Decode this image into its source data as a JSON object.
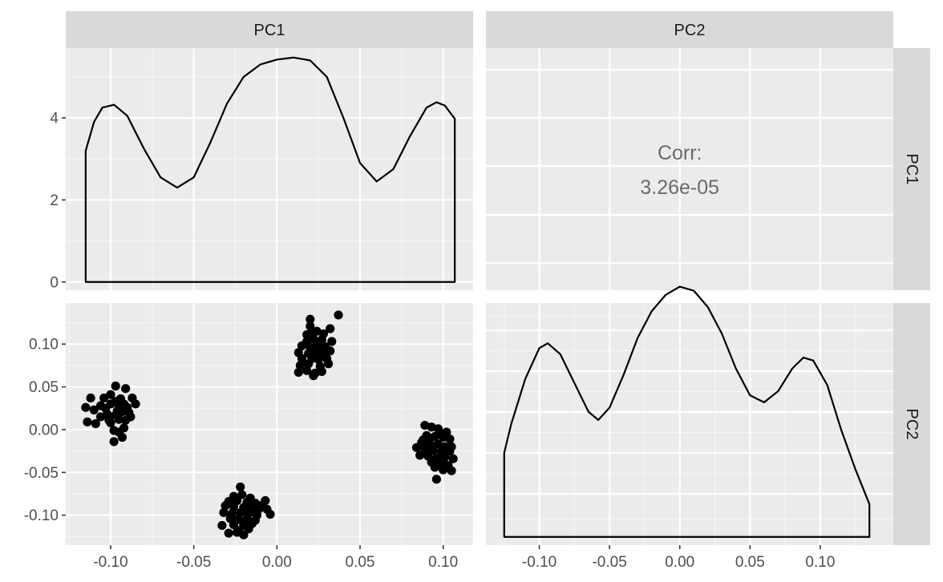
{
  "chart_data": {
    "type": "scatter",
    "variables": [
      "PC1",
      "PC2"
    ],
    "grid": true,
    "panels": [
      {
        "row": "PC1",
        "col": "PC1",
        "type": "density",
        "xlim": [
          -0.127,
          0.118
        ],
        "ylim": [
          -0.2,
          5.7
        ],
        "y_ticks": [
          0,
          2,
          4
        ],
        "y_tick_labels": [
          "0",
          "2",
          "4"
        ],
        "curve": [
          [
            -0.115,
            3.2
          ],
          [
            -0.11,
            3.9
          ],
          [
            -0.105,
            4.25
          ],
          [
            -0.098,
            4.32
          ],
          [
            -0.09,
            4.05
          ],
          [
            -0.08,
            3.25
          ],
          [
            -0.07,
            2.55
          ],
          [
            -0.06,
            2.3
          ],
          [
            -0.05,
            2.55
          ],
          [
            -0.04,
            3.4
          ],
          [
            -0.03,
            4.35
          ],
          [
            -0.02,
            5.0
          ],
          [
            -0.01,
            5.3
          ],
          [
            0.0,
            5.42
          ],
          [
            0.01,
            5.47
          ],
          [
            0.02,
            5.4
          ],
          [
            0.03,
            5.0
          ],
          [
            0.04,
            4.0
          ],
          [
            0.05,
            2.9
          ],
          [
            0.06,
            2.45
          ],
          [
            0.07,
            2.75
          ],
          [
            0.08,
            3.55
          ],
          [
            0.09,
            4.25
          ],
          [
            0.096,
            4.38
          ],
          [
            0.101,
            4.3
          ],
          [
            0.107,
            3.98
          ]
        ]
      },
      {
        "row": "PC1",
        "col": "PC2",
        "type": "text",
        "label": "Corr:",
        "value": "3.26e-05"
      },
      {
        "row": "PC2",
        "col": "PC1",
        "type": "scatter",
        "xlim": [
          -0.127,
          0.118
        ],
        "ylim": [
          -0.135,
          0.148
        ],
        "y_ticks": [
          0.1,
          0.05,
          0.0,
          -0.05,
          -0.1
        ],
        "y_tick_labels": [
          "0.10",
          "0.05",
          "0.00",
          "-0.05",
          "-0.10"
        ],
        "x_ticks": [
          -0.1,
          -0.05,
          0.0,
          0.05,
          0.1
        ],
        "x_tick_labels": [
          "-0.10",
          "-0.05",
          "0.00",
          "0.05",
          "0.10"
        ],
        "points": [
          [
            -0.097,
            0.051
          ],
          [
            -0.091,
            0.048
          ],
          [
            -0.094,
            0.036
          ],
          [
            -0.087,
            0.037
          ],
          [
            -0.1,
            0.041
          ],
          [
            -0.104,
            0.037
          ],
          [
            -0.112,
            0.037
          ],
          [
            -0.115,
            0.026
          ],
          [
            -0.11,
            0.023
          ],
          [
            -0.106,
            0.028
          ],
          [
            -0.1,
            0.03
          ],
          [
            -0.095,
            0.028
          ],
          [
            -0.09,
            0.026
          ],
          [
            -0.085,
            0.03
          ],
          [
            -0.089,
            0.02
          ],
          [
            -0.093,
            0.021
          ],
          [
            -0.097,
            0.017
          ],
          [
            -0.102,
            0.018
          ],
          [
            -0.106,
            0.015
          ],
          [
            -0.109,
            0.007
          ],
          [
            -0.114,
            0.009
          ],
          [
            -0.1,
            0.008
          ],
          [
            -0.095,
            0.012
          ],
          [
            -0.091,
            0.011
          ],
          [
            -0.088,
            0.015
          ],
          [
            -0.098,
            -0.001
          ],
          [
            -0.095,
            -0.003
          ],
          [
            -0.092,
            0.002
          ],
          [
            -0.098,
            -0.014
          ],
          [
            -0.093,
            -0.009
          ],
          [
            -0.103,
            0.025
          ],
          [
            -0.097,
            0.033
          ],
          [
            -0.092,
            0.03
          ],
          [
            -0.101,
            0.011
          ],
          [
            -0.096,
            0.022
          ],
          [
            0.032,
            0.118
          ],
          [
            0.02,
            0.129
          ],
          [
            0.02,
            0.121
          ],
          [
            0.021,
            0.115
          ],
          [
            0.018,
            0.111
          ],
          [
            0.024,
            0.115
          ],
          [
            0.028,
            0.112
          ],
          [
            0.027,
            0.105
          ],
          [
            0.022,
            0.106
          ],
          [
            0.018,
            0.103
          ],
          [
            0.015,
            0.098
          ],
          [
            0.02,
            0.096
          ],
          [
            0.025,
            0.097
          ],
          [
            0.029,
            0.097
          ],
          [
            0.033,
            0.103
          ],
          [
            0.013,
            0.09
          ],
          [
            0.019,
            0.089
          ],
          [
            0.024,
            0.091
          ],
          [
            0.028,
            0.089
          ],
          [
            0.032,
            0.092
          ],
          [
            0.015,
            0.083
          ],
          [
            0.021,
            0.083
          ],
          [
            0.025,
            0.082
          ],
          [
            0.03,
            0.083
          ],
          [
            0.014,
            0.075
          ],
          [
            0.019,
            0.077
          ],
          [
            0.026,
            0.074
          ],
          [
            0.031,
            0.077
          ],
          [
            0.013,
            0.067
          ],
          [
            0.018,
            0.069
          ],
          [
            0.023,
            0.066
          ],
          [
            0.022,
            0.063
          ],
          [
            0.027,
            0.068
          ],
          [
            0.037,
            0.134
          ],
          [
            0.024,
            0.102
          ],
          [
            -0.022,
            -0.067
          ],
          [
            -0.026,
            -0.078
          ],
          [
            -0.021,
            -0.076
          ],
          [
            -0.016,
            -0.08
          ],
          [
            -0.029,
            -0.084
          ],
          [
            -0.024,
            -0.083
          ],
          [
            -0.018,
            -0.085
          ],
          [
            -0.013,
            -0.086
          ],
          [
            -0.01,
            -0.089
          ],
          [
            -0.007,
            -0.083
          ],
          [
            -0.031,
            -0.089
          ],
          [
            -0.026,
            -0.09
          ],
          [
            -0.02,
            -0.091
          ],
          [
            -0.015,
            -0.092
          ],
          [
            -0.011,
            -0.093
          ],
          [
            -0.006,
            -0.093
          ],
          [
            -0.004,
            -0.099
          ],
          [
            -0.032,
            -0.097
          ],
          [
            -0.027,
            -0.098
          ],
          [
            -0.022,
            -0.097
          ],
          [
            -0.017,
            -0.098
          ],
          [
            -0.012,
            -0.1
          ],
          [
            -0.028,
            -0.104
          ],
          [
            -0.023,
            -0.105
          ],
          [
            -0.018,
            -0.104
          ],
          [
            -0.013,
            -0.106
          ],
          [
            -0.033,
            -0.112
          ],
          [
            -0.026,
            -0.111
          ],
          [
            -0.02,
            -0.112
          ],
          [
            -0.015,
            -0.11
          ],
          [
            -0.023,
            -0.118
          ],
          [
            -0.029,
            -0.121
          ],
          [
            -0.02,
            -0.123
          ],
          [
            -0.024,
            -0.12
          ],
          [
            -0.017,
            -0.116
          ],
          [
            0.089,
            0.005
          ],
          [
            0.093,
            0.003
          ],
          [
            0.097,
            0.001
          ],
          [
            0.102,
            -0.003
          ],
          [
            0.09,
            -0.007
          ],
          [
            0.095,
            -0.008
          ],
          [
            0.1,
            -0.009
          ],
          [
            0.104,
            -0.011
          ],
          [
            0.087,
            -0.015
          ],
          [
            0.092,
            -0.016
          ],
          [
            0.097,
            -0.017
          ],
          [
            0.101,
            -0.02
          ],
          [
            0.105,
            -0.02
          ],
          [
            0.084,
            -0.021
          ],
          [
            0.089,
            -0.023
          ],
          [
            0.094,
            -0.024
          ],
          [
            0.099,
            -0.026
          ],
          [
            0.104,
            -0.025
          ],
          [
            0.086,
            -0.03
          ],
          [
            0.091,
            -0.031
          ],
          [
            0.096,
            -0.033
          ],
          [
            0.101,
            -0.032
          ],
          [
            0.106,
            -0.034
          ],
          [
            0.093,
            -0.038
          ],
          [
            0.098,
            -0.04
          ],
          [
            0.103,
            -0.042
          ],
          [
            0.095,
            -0.044
          ],
          [
            0.1,
            -0.047
          ],
          [
            0.105,
            -0.048
          ],
          [
            0.096,
            -0.058
          ],
          [
            0.092,
            -0.01
          ],
          [
            0.098,
            -0.005
          ],
          [
            0.09,
            -0.027
          ],
          [
            0.1,
            -0.037
          ],
          [
            0.088,
            -0.012
          ]
        ]
      },
      {
        "row": "PC2",
        "col": "PC2",
        "type": "density",
        "xlim": [
          -0.138,
          0.152
        ],
        "ylim": [
          -0.2,
          5.7
        ],
        "x_ticks": [
          -0.1,
          -0.05,
          0.0,
          0.05,
          0.1
        ],
        "x_tick_labels": [
          "-0.10",
          "-0.05",
          "0.00",
          "0.05",
          "0.10"
        ],
        "curve": [
          [
            -0.125,
            2.05
          ],
          [
            -0.12,
            2.75
          ],
          [
            -0.11,
            3.85
          ],
          [
            -0.1,
            4.6
          ],
          [
            -0.094,
            4.72
          ],
          [
            -0.085,
            4.45
          ],
          [
            -0.075,
            3.75
          ],
          [
            -0.065,
            3.05
          ],
          [
            -0.058,
            2.85
          ],
          [
            -0.05,
            3.15
          ],
          [
            -0.04,
            3.95
          ],
          [
            -0.03,
            4.85
          ],
          [
            -0.02,
            5.5
          ],
          [
            -0.01,
            5.9
          ],
          [
            0.0,
            6.1
          ],
          [
            0.01,
            6.0
          ],
          [
            0.02,
            5.6
          ],
          [
            0.03,
            4.95
          ],
          [
            0.04,
            4.1
          ],
          [
            0.05,
            3.45
          ],
          [
            0.06,
            3.28
          ],
          [
            0.07,
            3.55
          ],
          [
            0.08,
            4.1
          ],
          [
            0.088,
            4.37
          ],
          [
            0.095,
            4.3
          ],
          [
            0.105,
            3.7
          ],
          [
            0.115,
            2.6
          ],
          [
            0.125,
            1.65
          ],
          [
            0.135,
            0.8
          ]
        ]
      }
    ],
    "strips": {
      "top": [
        "PC1",
        "PC2"
      ],
      "right": [
        "PC1",
        "PC2"
      ]
    }
  }
}
